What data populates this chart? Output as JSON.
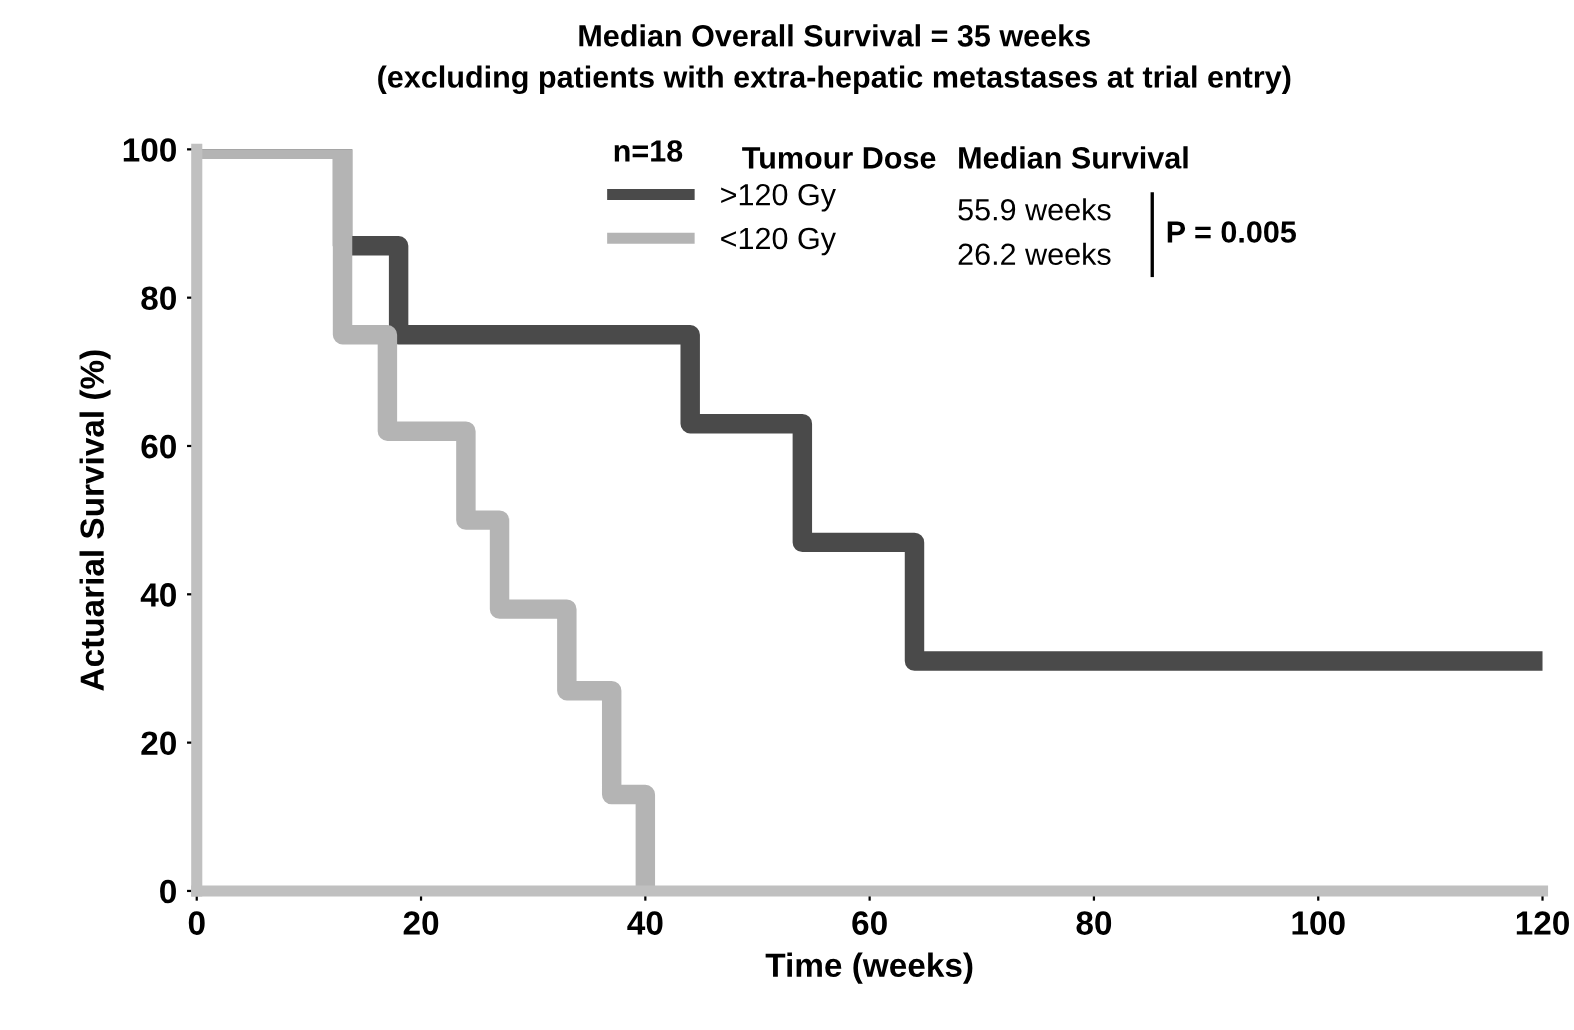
{
  "chart_data": {
    "type": "step",
    "title": "Median Overall Survival = 35 weeks",
    "subtitle": "(excluding patients with extra-hepatic metastases at trial entry)",
    "xlabel": "Time (weeks)",
    "ylabel": "Actuarial Survival (%)",
    "series": [
      {
        "name": ">120 Gy",
        "color": "#4a4a4a",
        "x": [
          0,
          13,
          18,
          44,
          54,
          64,
          120
        ],
        "values": [
          100,
          87,
          75,
          63,
          47,
          31,
          31
        ]
      },
      {
        "name": "<120 Gy",
        "color": "#b4b4b4",
        "x": [
          0,
          13,
          17,
          24,
          27,
          33,
          37,
          40
        ],
        "values": [
          100,
          75,
          62,
          50,
          38,
          27,
          13,
          0
        ]
      }
    ],
    "xlim": [
      0,
      120
    ],
    "xticks": [
      0,
      20,
      40,
      60,
      80,
      100,
      120
    ],
    "ylim": [
      0,
      100
    ],
    "yticks": [
      0,
      20,
      40,
      60,
      80,
      100
    ],
    "legend": "top",
    "legend_title": "n=18",
    "grid": false,
    "line_style": "solid",
    "marker": "none",
    "annotations": [
      "Tumour Dose",
      "Median Survival",
      "55.9 weeks",
      "26.2 weeks",
      "P = 0.005"
    ]
  }
}
